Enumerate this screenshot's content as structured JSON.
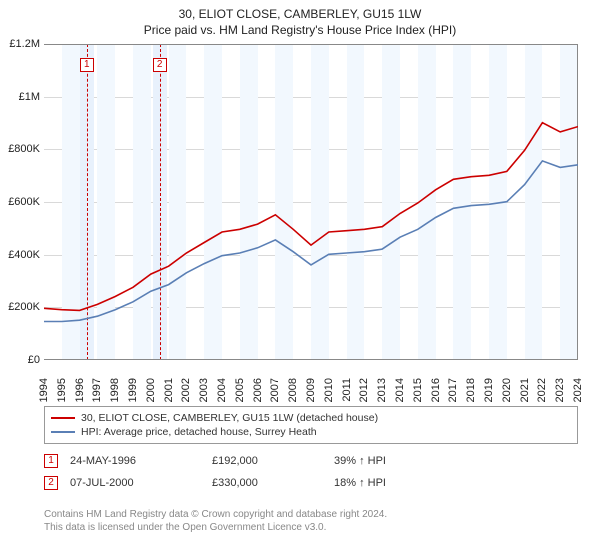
{
  "title_line1": "30, ELIOT CLOSE, CAMBERLEY, GU15 1LW",
  "title_line2": "Price paid vs. HM Land Registry's House Price Index (HPI)",
  "chart": {
    "type": "line",
    "background_color": "#ffffff",
    "grid_color": "#d9d9d9",
    "axis_color": "#888888",
    "x_years": [
      1994,
      1995,
      1996,
      1997,
      1998,
      1999,
      2000,
      2001,
      2002,
      2003,
      2004,
      2005,
      2006,
      2007,
      2008,
      2009,
      2010,
      2011,
      2012,
      2013,
      2014,
      2015,
      2016,
      2017,
      2018,
      2019,
      2020,
      2021,
      2022,
      2023,
      2024
    ],
    "x_band_color_light": "#f2f8fe",
    "x_band_color_strong": "#e8f1fc",
    "ylim": [
      0,
      1200000
    ],
    "ytick_step": 200000,
    "ytick_labels": [
      "£0",
      "£200K",
      "£400K",
      "£600K",
      "£800K",
      "£1M",
      "£1.2M"
    ],
    "series": [
      {
        "name": "30, ELIOT CLOSE, CAMBERLEY, GU15 1LW (detached house)",
        "color": "#cc0000",
        "values_by_year": {
          "1994": 200000,
          "1995": 195000,
          "1996": 192000,
          "1997": 215000,
          "1998": 245000,
          "1999": 280000,
          "2000": 330000,
          "2001": 360000,
          "2002": 410000,
          "2003": 450000,
          "2004": 490000,
          "2005": 500000,
          "2006": 520000,
          "2007": 555000,
          "2008": 500000,
          "2009": 440000,
          "2010": 490000,
          "2011": 495000,
          "2012": 500000,
          "2013": 510000,
          "2014": 560000,
          "2015": 600000,
          "2016": 650000,
          "2017": 690000,
          "2018": 700000,
          "2019": 705000,
          "2020": 720000,
          "2021": 800000,
          "2022": 905000,
          "2023": 870000,
          "2024": 890000
        }
      },
      {
        "name": "HPI: Average price, detached house, Surrey Heath",
        "color": "#5a7fb5",
        "values_by_year": {
          "1994": 150000,
          "1995": 150000,
          "1996": 155000,
          "1997": 170000,
          "1998": 195000,
          "1999": 225000,
          "2000": 265000,
          "2001": 290000,
          "2002": 335000,
          "2003": 370000,
          "2004": 400000,
          "2005": 410000,
          "2006": 430000,
          "2007": 460000,
          "2008": 415000,
          "2009": 365000,
          "2010": 405000,
          "2011": 410000,
          "2012": 415000,
          "2013": 425000,
          "2014": 470000,
          "2015": 500000,
          "2016": 545000,
          "2017": 580000,
          "2018": 590000,
          "2019": 595000,
          "2020": 605000,
          "2021": 670000,
          "2022": 760000,
          "2023": 735000,
          "2024": 745000
        }
      }
    ],
    "markers": [
      {
        "id": "1",
        "date": "24-MAY-1996",
        "year": 1996.4,
        "price": "£192,000",
        "pct_vs_hpi": "39% ↑ HPI",
        "dash_color": "#cc0000"
      },
      {
        "id": "2",
        "date": "07-JUL-2000",
        "year": 2000.5,
        "price": "£330,000",
        "pct_vs_hpi": "18% ↑ HPI",
        "dash_color": "#cc0000"
      }
    ]
  },
  "legend_title": "",
  "attribution_line1": "Contains HM Land Registry data © Crown copyright and database right 2024.",
  "attribution_line2": "This data is licensed under the Open Government Licence v3.0."
}
